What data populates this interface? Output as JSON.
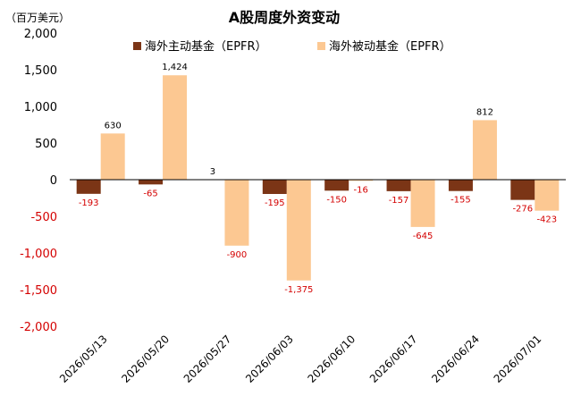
{
  "chart_data": {
    "type": "bar",
    "title": "A股周度外资变动",
    "unit_label": "（百万美元）",
    "categories": [
      "2026/05/13",
      "2026/05/20",
      "2026/05/27",
      "2026/06/03",
      "2026/06/10",
      "2026/06/17",
      "2026/06/24",
      "2026/07/01"
    ],
    "series": [
      {
        "name": "海外主动基金（EPFR）",
        "color": "#7b3516",
        "values": [
          -193,
          -65,
          3,
          -195,
          -150,
          -157,
          -155,
          -276
        ]
      },
      {
        "name": "海外被动基金（EPFR）",
        "color": "#fcc892",
        "values": [
          630,
          1424,
          -900,
          -1375,
          -16,
          -645,
          812,
          -423
        ]
      }
    ],
    "y_ticks": [
      "2,000",
      "1,500",
      "1,000",
      "500",
      "0",
      "-500",
      "-1,000",
      "-1,500",
      "-2,000"
    ],
    "ylim": [
      -2000,
      2000
    ],
    "grid": false,
    "legend_position": "top",
    "positive_label_color": "#000000",
    "negative_label_color": "#d40000"
  }
}
